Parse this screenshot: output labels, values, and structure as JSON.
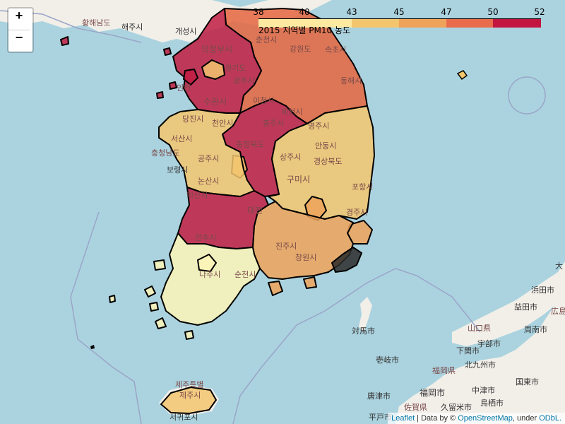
{
  "zoom": {
    "in_label": "+",
    "out_label": "−"
  },
  "legend": {
    "title": "2015 지역별 PM10 농도",
    "ticks": [
      "38",
      "40",
      "43",
      "45",
      "47",
      "50",
      "52"
    ],
    "colors": [
      "#fde9a0",
      "#f3c66e",
      "#efa35a",
      "#e86b4c",
      "#d8344a",
      "#c2153f"
    ]
  },
  "attribution": {
    "leaflet": "Leaflet",
    "sep": " | Data by © ",
    "osm": "OpenStreetMap",
    "under": ", under ",
    "odbl": "ODbL."
  },
  "places": {
    "hwanghae": "황해남도",
    "haeju": "해주시",
    "gaeseong": "개성시",
    "uijeongbu": "의정부시",
    "gyeonggi": "경기도",
    "suwon": "수원시",
    "gwangju_gg": "광주시",
    "icheon": "이천시",
    "incheon": "인천",
    "chuncheon": "춘천시",
    "gangwon": "강원도",
    "sokcho": "속초시",
    "donghae": "동해시",
    "jecheon": "제천시",
    "chungju": "충주시",
    "yeongju": "영주시",
    "dangjin": "당진시",
    "seosan": "서산시",
    "chungnam": "충청남도",
    "boryeong": "보령시",
    "gongju": "공주시",
    "cheonan": "천안시",
    "chungbuk": "충청북도",
    "andong": "안동시",
    "sangju": "상주시",
    "gyeongbuk": "경상북도",
    "gumi": "구미시",
    "pohang": "포항시",
    "nonsan": "논산시",
    "gyeongju": "경주시",
    "daejeon_n": "대전",
    "iksan": "익산시",
    "jeonju": "전주시",
    "changwon": "창원시",
    "jinju": "진주시",
    "naju": "나주시",
    "suncheon": "순천시",
    "tsushima": "対馬市",
    "iki": "壱岐市",
    "yamaguchi": "山口県",
    "shimonoseki": "下関市",
    "ube": "宇部市",
    "kitakyushu": "北九州市",
    "fukuoka_pref": "福岡県",
    "fukuoka": "福岡市",
    "hamada": "浜田市",
    "masuda": "益田市",
    "shunan": "周南市",
    "hiroshima": "広島",
    "nakatsu": "中津市",
    "kurume": "久留米市",
    "tosu": "鳥栖市",
    "saga": "佐賀県",
    "karatsu": "唐津市",
    "hirado": "平戸市",
    "jeju_prov": "제주특별",
    "jeju": "제주시",
    "seogwipo": "서귀포시",
    "kunisaki": "国東市",
    "oita": "大",
    "okmap": "大"
  }
}
